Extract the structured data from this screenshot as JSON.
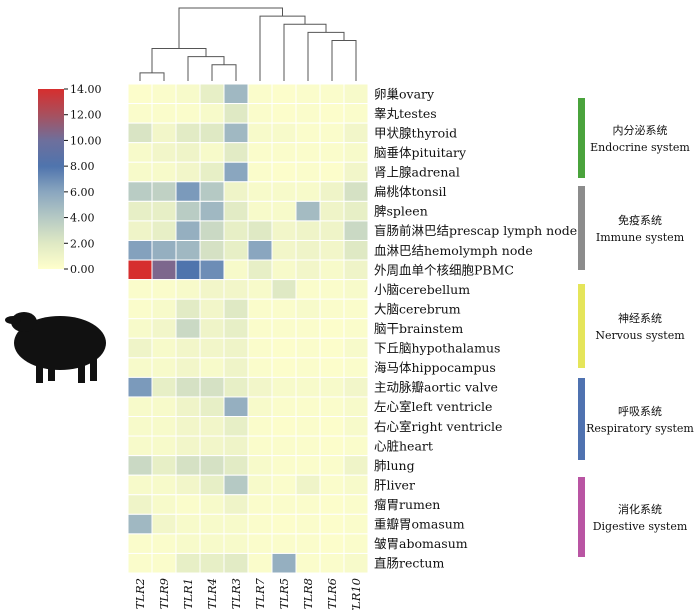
{
  "chart_data": {
    "type": "heatmap",
    "columns": [
      "TLR2",
      "TLR9",
      "TLR1",
      "TLR4",
      "TLR3",
      "TLR7",
      "TLR5",
      "TLR8",
      "TLR6",
      "TLR10"
    ],
    "rows": [
      "卵巢ovary",
      "睾丸testes",
      "甲状腺thyroid",
      "脑垂体pituitary",
      "肾上腺adrenal",
      "扁桃体tonsil",
      "脾spleen",
      "盲肠前淋巴结prescap lymph node",
      "血淋巴结hemolymph node",
      "外周血单个核细胞PBMC",
      "小脑cerebellum",
      "大脑cerebrum",
      "脑干brainstem",
      "下丘脑hypothalamus",
      "海马体hippocampus",
      "主动脉瓣aortic valve",
      "左心室left ventricle",
      "右心室right ventricle",
      "心脏heart",
      "肺lung",
      "肝liver",
      "瘤胃rumen",
      "重瓣胃omasum",
      "皱胃abomasum",
      "直肠rectum"
    ],
    "values": [
      [
        0.2,
        0.3,
        0.5,
        1.5,
        5.0,
        0.3,
        0.2,
        0.3,
        0.3,
        0.5
      ],
      [
        0.3,
        0.3,
        0.3,
        0.5,
        2.0,
        0.3,
        0.2,
        0.3,
        0.2,
        0.3
      ],
      [
        2.3,
        0.8,
        1.8,
        2.0,
        5.0,
        0.5,
        0.5,
        0.3,
        0.3,
        0.8
      ],
      [
        0.5,
        0.8,
        1.0,
        0.5,
        1.8,
        0.3,
        0.3,
        0.3,
        0.3,
        0.5
      ],
      [
        0.5,
        0.5,
        0.8,
        1.5,
        6.0,
        0.3,
        0.2,
        0.3,
        0.2,
        0.8
      ],
      [
        3.8,
        3.5,
        6.5,
        4.0,
        1.0,
        0.5,
        0.5,
        0.5,
        1.0,
        2.5
      ],
      [
        1.5,
        1.5,
        3.8,
        5.0,
        1.8,
        0.5,
        0.5,
        4.8,
        1.0,
        1.5
      ],
      [
        1.0,
        1.5,
        5.5,
        3.0,
        1.5,
        2.0,
        0.8,
        1.0,
        1.0,
        3.0
      ],
      [
        6.2,
        5.5,
        5.0,
        2.5,
        1.5,
        6.0,
        0.8,
        1.0,
        0.8,
        2.0
      ],
      [
        14.0,
        10.5,
        8.0,
        7.0,
        0.5,
        1.5,
        0.5,
        0.8,
        0.5,
        1.0
      ],
      [
        0.3,
        0.3,
        0.5,
        0.8,
        0.8,
        0.5,
        2.0,
        0.3,
        0.3,
        0.5
      ],
      [
        0.3,
        0.5,
        1.8,
        0.8,
        2.0,
        0.3,
        0.3,
        0.5,
        0.3,
        0.3
      ],
      [
        0.5,
        0.8,
        3.0,
        1.0,
        1.5,
        0.3,
        0.3,
        0.3,
        0.2,
        0.3
      ],
      [
        1.0,
        0.5,
        0.8,
        0.8,
        1.0,
        0.3,
        0.2,
        0.3,
        0.2,
        0.5
      ],
      [
        0.5,
        0.5,
        0.8,
        0.5,
        1.0,
        0.3,
        0.2,
        0.3,
        0.2,
        0.3
      ],
      [
        6.5,
        1.5,
        2.5,
        2.5,
        1.5,
        0.8,
        0.5,
        0.5,
        0.5,
        0.8
      ],
      [
        0.5,
        0.5,
        1.0,
        1.5,
        5.5,
        0.5,
        0.3,
        0.3,
        0.3,
        0.5
      ],
      [
        0.5,
        0.5,
        0.8,
        0.8,
        1.5,
        0.3,
        0.2,
        0.3,
        0.2,
        0.5
      ],
      [
        0.5,
        0.5,
        0.8,
        0.8,
        1.0,
        0.3,
        0.3,
        0.3,
        0.2,
        0.3
      ],
      [
        3.0,
        1.5,
        2.5,
        2.5,
        1.8,
        0.5,
        0.3,
        0.3,
        0.3,
        1.0
      ],
      [
        0.5,
        0.5,
        0.8,
        1.5,
        4.0,
        0.5,
        0.3,
        1.0,
        0.3,
        0.5
      ],
      [
        1.0,
        0.5,
        0.3,
        0.5,
        1.0,
        0.3,
        0.3,
        0.3,
        0.2,
        0.3
      ],
      [
        5.0,
        0.8,
        0.5,
        0.5,
        0.5,
        0.3,
        0.2,
        0.3,
        0.2,
        0.3
      ],
      [
        0.3,
        0.3,
        0.5,
        0.5,
        0.5,
        0.3,
        0.3,
        0.3,
        0.2,
        0.3
      ],
      [
        0.3,
        0.3,
        1.5,
        1.5,
        1.8,
        0.3,
        5.5,
        0.3,
        0.3,
        0.5
      ]
    ],
    "colorbar": {
      "min": 0,
      "max": 14,
      "tick_labels": [
        "14.00",
        "12.00",
        "10.00",
        "8.00",
        "6.00",
        "4.00",
        "2.00",
        "0.00"
      ],
      "colors": [
        "#ffffcc",
        "#dfe9c4",
        "#b5c9c4",
        "#8aa6bf",
        "#4f74ad",
        "#6e6f9c",
        "#a8505e",
        "#d62e2e"
      ]
    },
    "groups": [
      {
        "cn": "内分泌系统",
        "en": "Endocrine system",
        "color": "#4aa33c",
        "row_start": 0,
        "row_end": 4
      },
      {
        "cn": "免疫系统",
        "en": "Immune system",
        "color": "#8c8c8c",
        "row_start": 5,
        "row_end": 9
      },
      {
        "cn": "神经系统",
        "en": "Nervous system",
        "color": "#e5e55a",
        "row_start": 10,
        "row_end": 14
      },
      {
        "cn": "呼吸系统",
        "en": "Respiratory system",
        "color": "#4f72b0",
        "row_start": 15,
        "row_end": 19
      },
      {
        "cn": "消化系统",
        "en": "Digestive system",
        "color": "#b955a3",
        "row_start": 20,
        "row_end": 24
      }
    ],
    "dendrogram": [
      [
        0,
        1
      ],
      [
        3,
        4
      ],
      [
        2,
        11
      ],
      [
        10,
        12
      ],
      [
        8,
        9
      ],
      [
        7,
        14
      ],
      [
        6,
        15
      ],
      [
        5,
        16
      ],
      [
        17,
        13
      ]
    ],
    "sheep_icon": "sheep-silhouette-icon"
  }
}
